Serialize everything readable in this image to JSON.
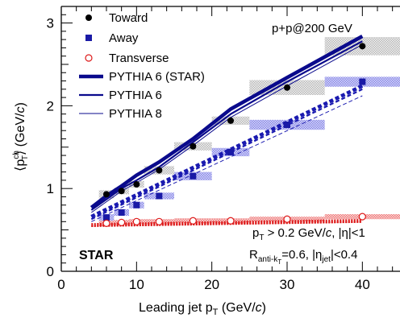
{
  "chart_data": {
    "type": "line",
    "xlabel": "Leading jet p_T (GeV/c)",
    "ylabel": "⟨p_T^ch⟩ (GeV/c)",
    "xlim": [
      0,
      45
    ],
    "ylim": [
      0,
      3.2
    ],
    "x_ticks": [
      "0",
      "10",
      "20",
      "30",
      "40"
    ],
    "y_ticks": [
      "0",
      "1",
      "2",
      "3"
    ],
    "legend_position": "top-left",
    "annotations": {
      "energy": "p+p@200 GeV",
      "cut1": "p_T > 0.2 GeV/c, |η|<1",
      "cut2": "R_anti-k_T=0.6, |η_jet|<0.4",
      "experiment": "STAR"
    },
    "series": [
      {
        "name": "Toward",
        "kind": "data",
        "marker": "filled-circle",
        "color": "#000000",
        "sysColor": "#9a9a9a",
        "x": [
          6,
          8,
          10,
          13,
          17.5,
          22.5,
          30,
          40
        ],
        "y": [
          0.93,
          0.97,
          1.05,
          1.22,
          1.51,
          1.82,
          2.22,
          2.72
        ],
        "xerr": [
          1,
          1,
          1,
          2,
          2.5,
          2.5,
          5,
          5
        ],
        "syst": [
          0.05,
          0.04,
          0.04,
          0.05,
          0.05,
          0.05,
          0.09,
          0.11
        ]
      },
      {
        "name": "Away",
        "kind": "data",
        "marker": "filled-square",
        "color": "#1a1aa6",
        "sysColor": "#6a6ae8",
        "x": [
          6,
          8,
          10,
          13,
          17.5,
          22.5,
          30,
          40
        ],
        "y": [
          0.65,
          0.71,
          0.8,
          0.91,
          1.15,
          1.44,
          1.77,
          2.29
        ],
        "xerr": [
          1,
          1,
          1,
          2,
          2.5,
          2.5,
          5,
          5
        ],
        "syst": [
          0.04,
          0.04,
          0.04,
          0.04,
          0.05,
          0.05,
          0.06,
          0.06
        ]
      },
      {
        "name": "Transverse",
        "kind": "data",
        "marker": "open-circle",
        "color": "#dd1a1a",
        "sysColor": "#ee3a3a",
        "x": [
          6,
          8,
          10,
          13,
          17.5,
          22.5,
          30,
          40
        ],
        "y": [
          0.58,
          0.59,
          0.6,
          0.6,
          0.61,
          0.61,
          0.63,
          0.66
        ],
        "xerr": [
          1,
          1,
          1,
          2,
          2.5,
          2.5,
          5,
          5
        ],
        "syst": [
          0.03,
          0.03,
          0.03,
          0.03,
          0.03,
          0.03,
          0.03,
          0.03
        ]
      },
      {
        "name": "PYTHIA 6 (STAR)",
        "kind": "model",
        "region": "Toward",
        "style": "thick",
        "color": "#0a0a8c",
        "x": [
          4,
          6,
          8,
          10,
          13,
          17.5,
          22.5,
          30,
          40
        ],
        "y": [
          0.77,
          0.91,
          1.03,
          1.16,
          1.32,
          1.6,
          1.96,
          2.34,
          2.84
        ]
      },
      {
        "name": "PYTHIA 6",
        "kind": "model",
        "region": "Toward",
        "style": "medium",
        "color": "#0a0a8c",
        "x": [
          4,
          6,
          8,
          10,
          13,
          17.5,
          22.5,
          30,
          40
        ],
        "y": [
          0.74,
          0.87,
          1.0,
          1.1,
          1.26,
          1.56,
          1.9,
          2.29,
          2.78
        ]
      },
      {
        "name": "PYTHIA 8",
        "kind": "model",
        "region": "Toward",
        "style": "thin",
        "color": "#0a0a8c",
        "x": [
          4,
          6,
          8,
          10,
          13,
          17.5,
          22.5,
          30,
          40
        ],
        "y": [
          0.71,
          0.84,
          0.97,
          1.07,
          1.23,
          1.52,
          1.86,
          2.24,
          2.74
        ]
      },
      {
        "name": "PYTHIA 6 (STAR)",
        "kind": "model",
        "region": "Away",
        "style": "thick",
        "color": "#1a1ab0",
        "x": [
          4,
          40
        ],
        "y": [
          0.66,
          2.24
        ]
      },
      {
        "name": "PYTHIA 6",
        "kind": "model",
        "region": "Away",
        "style": "medium",
        "color": "#1a1ab0",
        "x": [
          4,
          40
        ],
        "y": [
          0.63,
          2.2
        ]
      },
      {
        "name": "PYTHIA 8",
        "kind": "model",
        "region": "Away",
        "style": "thin",
        "color": "#1a1ab0",
        "x": [
          4,
          40
        ],
        "y": [
          0.6,
          2.12
        ]
      },
      {
        "name": "PYTHIA 6 (STAR)",
        "kind": "model",
        "region": "Transverse",
        "style": "thick",
        "color": "#dd1a1a",
        "x": [
          4,
          40
        ],
        "y": [
          0.56,
          0.61
        ]
      },
      {
        "name": "PYTHIA 6",
        "kind": "model",
        "region": "Transverse",
        "style": "medium",
        "color": "#dd1a1a",
        "x": [
          4,
          40
        ],
        "y": [
          0.55,
          0.6
        ]
      },
      {
        "name": "PYTHIA 8",
        "kind": "model",
        "region": "Transverse",
        "style": "thin",
        "color": "#dd1a1a",
        "x": [
          4,
          40
        ],
        "y": [
          0.54,
          0.59
        ]
      }
    ]
  }
}
